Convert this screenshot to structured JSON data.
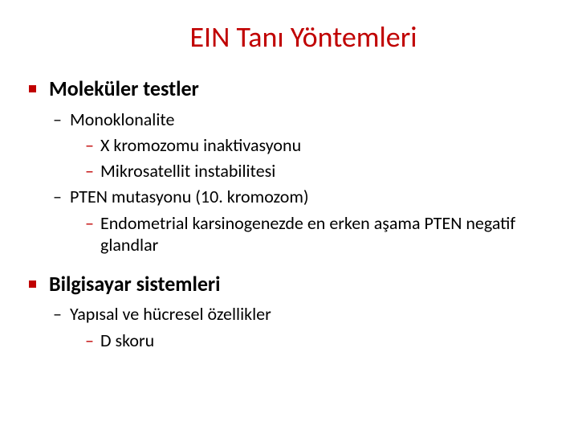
{
  "colors": {
    "accent": "#c00000",
    "text": "#000000",
    "background": "#ffffff"
  },
  "typography": {
    "title_fontsize": 36,
    "level1_fontsize": 26,
    "level2_fontsize": 22,
    "level3_fontsize": 22,
    "font_family": "Calibri"
  },
  "title": "EIN Tanı Yöntemleri",
  "bullets": [
    {
      "label": "Moleküler testler",
      "children": [
        {
          "label": "Monoklonalite",
          "children": [
            {
              "label": "X kromozomu inaktivasyonu"
            },
            {
              "label": "Mikrosatellit instabilitesi"
            }
          ]
        },
        {
          "label": "PTEN mutasyonu (10. kromozom)",
          "children": [
            {
              "label": "Endometrial karsinogenezde en erken aşama PTEN negatif glandlar"
            }
          ]
        }
      ]
    },
    {
      "label": "Bilgisayar sistemleri",
      "children": [
        {
          "label": "Yapısal ve hücresel özellikler",
          "children": [
            {
              "label": "D skoru"
            }
          ]
        }
      ]
    }
  ]
}
